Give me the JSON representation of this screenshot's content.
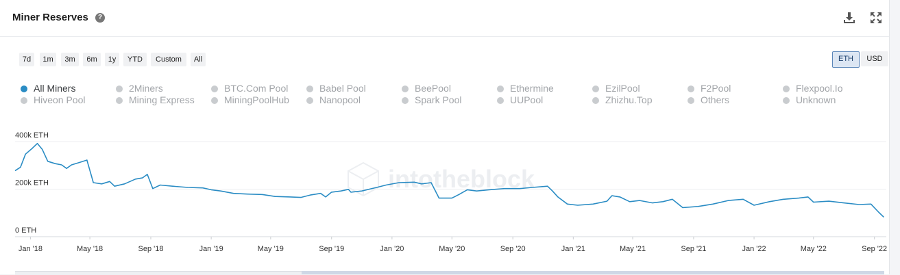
{
  "header": {
    "title": "Miner Reserves",
    "help_glyph": "?",
    "download_icon": "download-icon",
    "expand_icon": "expand-icon"
  },
  "range_buttons": [
    "7d",
    "1m",
    "3m",
    "6m",
    "1y",
    "YTD",
    "Custom",
    "All"
  ],
  "unit_buttons": [
    {
      "label": "ETH",
      "active": true
    },
    {
      "label": "USD",
      "active": false
    }
  ],
  "legend": [
    {
      "label": "All Miners",
      "active": true
    },
    {
      "label": "2Miners",
      "active": false
    },
    {
      "label": "BTC.Com Pool",
      "active": false
    },
    {
      "label": "Babel Pool",
      "active": false
    },
    {
      "label": "BeePool",
      "active": false
    },
    {
      "label": "Ethermine",
      "active": false
    },
    {
      "label": "EzilPool",
      "active": false
    },
    {
      "label": "F2Pool",
      "active": false
    },
    {
      "label": "Flexpool.Io",
      "active": false
    },
    {
      "label": "Hiveon Pool",
      "active": false
    },
    {
      "label": "Mining Express",
      "active": false
    },
    {
      "label": "MiningPoolHub",
      "active": false
    },
    {
      "label": "Nanopool",
      "active": false
    },
    {
      "label": "Spark Pool",
      "active": false
    },
    {
      "label": "UUPool",
      "active": false
    },
    {
      "label": "Zhizhu.Top",
      "active": false
    },
    {
      "label": "Others",
      "active": false
    },
    {
      "label": "Unknown",
      "active": false
    }
  ],
  "watermark": "intotheblock",
  "colors": {
    "series": "#2a8cc4",
    "legend_active": "#2a8cc4",
    "legend_inactive": "#c9cccf",
    "legend_inactive_text": "#a2a5a9",
    "grid": "#eceef1"
  },
  "chart_data": {
    "type": "line",
    "ylabel": "",
    "ylim": [
      0,
      400000
    ],
    "y_ticks": [
      {
        "value": 0,
        "label": "0 ETH"
      },
      {
        "value": 200000,
        "label": "200k ETH"
      },
      {
        "value": 400000,
        "label": "400k ETH"
      }
    ],
    "x_range": [
      "2017-12-01",
      "2022-09-25"
    ],
    "x_ticks": [
      {
        "date": "2018-01-01",
        "label": "Jan '18"
      },
      {
        "date": "2018-05-01",
        "label": "May '18"
      },
      {
        "date": "2018-09-01",
        "label": "Sep '18"
      },
      {
        "date": "2019-01-01",
        "label": "Jan '19"
      },
      {
        "date": "2019-05-01",
        "label": "May '19"
      },
      {
        "date": "2019-09-01",
        "label": "Sep '19"
      },
      {
        "date": "2020-01-01",
        "label": "Jan '20"
      },
      {
        "date": "2020-05-01",
        "label": "May '20"
      },
      {
        "date": "2020-09-01",
        "label": "Sep '20"
      },
      {
        "date": "2021-01-01",
        "label": "Jan '21"
      },
      {
        "date": "2021-05-01",
        "label": "May '21"
      },
      {
        "date": "2021-09-01",
        "label": "Sep '21"
      },
      {
        "date": "2022-01-01",
        "label": "Jan '22"
      },
      {
        "date": "2022-05-01",
        "label": "May '22"
      },
      {
        "date": "2022-09-01",
        "label": "Sep '22"
      }
    ],
    "grid": true,
    "series": [
      {
        "name": "All Miners",
        "points": [
          [
            "2017-12-01",
            260000
          ],
          [
            "2017-12-12",
            275000
          ],
          [
            "2017-12-22",
            330000
          ],
          [
            "2018-01-05",
            355000
          ],
          [
            "2018-01-15",
            375000
          ],
          [
            "2018-01-25",
            350000
          ],
          [
            "2018-02-05",
            300000
          ],
          [
            "2018-02-20",
            290000
          ],
          [
            "2018-03-05",
            285000
          ],
          [
            "2018-03-15",
            270000
          ],
          [
            "2018-03-25",
            285000
          ],
          [
            "2018-04-10",
            295000
          ],
          [
            "2018-04-25",
            305000
          ],
          [
            "2018-05-08",
            210000
          ],
          [
            "2018-05-25",
            205000
          ],
          [
            "2018-06-10",
            215000
          ],
          [
            "2018-06-20",
            195000
          ],
          [
            "2018-07-10",
            205000
          ],
          [
            "2018-08-01",
            225000
          ],
          [
            "2018-08-15",
            230000
          ],
          [
            "2018-08-25",
            245000
          ],
          [
            "2018-09-05",
            185000
          ],
          [
            "2018-09-20",
            200000
          ],
          [
            "2018-10-15",
            195000
          ],
          [
            "2018-11-15",
            190000
          ],
          [
            "2018-12-15",
            188000
          ],
          [
            "2019-01-01",
            180000
          ],
          [
            "2019-01-20",
            175000
          ],
          [
            "2019-02-15",
            165000
          ],
          [
            "2019-03-15",
            162000
          ],
          [
            "2019-04-15",
            160000
          ],
          [
            "2019-05-10",
            152000
          ],
          [
            "2019-06-10",
            150000
          ],
          [
            "2019-07-01",
            148000
          ],
          [
            "2019-07-20",
            158000
          ],
          [
            "2019-08-10",
            165000
          ],
          [
            "2019-08-20",
            150000
          ],
          [
            "2019-09-01",
            170000
          ],
          [
            "2019-09-20",
            175000
          ],
          [
            "2019-10-05",
            182000
          ],
          [
            "2019-10-10",
            170000
          ],
          [
            "2019-11-01",
            175000
          ],
          [
            "2019-12-01",
            190000
          ],
          [
            "2019-12-20",
            200000
          ],
          [
            "2020-01-15",
            210000
          ],
          [
            "2020-02-15",
            212000
          ],
          [
            "2020-03-01",
            205000
          ],
          [
            "2020-03-20",
            210000
          ],
          [
            "2020-04-05",
            145000
          ],
          [
            "2020-05-01",
            145000
          ],
          [
            "2020-05-15",
            160000
          ],
          [
            "2020-06-01",
            180000
          ],
          [
            "2020-06-20",
            175000
          ],
          [
            "2020-07-15",
            180000
          ],
          [
            "2020-08-15",
            185000
          ],
          [
            "2020-09-15",
            185000
          ],
          [
            "2020-10-10",
            190000
          ],
          [
            "2020-11-10",
            195000
          ],
          [
            "2020-11-20",
            175000
          ],
          [
            "2020-12-01",
            150000
          ],
          [
            "2020-12-20",
            120000
          ],
          [
            "2021-01-10",
            115000
          ],
          [
            "2021-02-10",
            120000
          ],
          [
            "2021-03-10",
            132000
          ],
          [
            "2021-03-20",
            155000
          ],
          [
            "2021-04-05",
            150000
          ],
          [
            "2021-04-25",
            130000
          ],
          [
            "2021-05-15",
            135000
          ],
          [
            "2021-06-10",
            125000
          ],
          [
            "2021-07-01",
            130000
          ],
          [
            "2021-07-20",
            140000
          ],
          [
            "2021-08-10",
            105000
          ],
          [
            "2021-09-10",
            110000
          ],
          [
            "2021-10-10",
            120000
          ],
          [
            "2021-11-10",
            135000
          ],
          [
            "2021-12-10",
            140000
          ],
          [
            "2022-01-01",
            115000
          ],
          [
            "2022-02-01",
            130000
          ],
          [
            "2022-03-01",
            140000
          ],
          [
            "2022-04-01",
            145000
          ],
          [
            "2022-04-20",
            150000
          ],
          [
            "2022-05-01",
            128000
          ],
          [
            "2022-06-01",
            132000
          ],
          [
            "2022-07-01",
            125000
          ],
          [
            "2022-08-01",
            118000
          ],
          [
            "2022-08-25",
            120000
          ],
          [
            "2022-09-10",
            85000
          ],
          [
            "2022-09-20",
            65000
          ]
        ]
      }
    ]
  }
}
